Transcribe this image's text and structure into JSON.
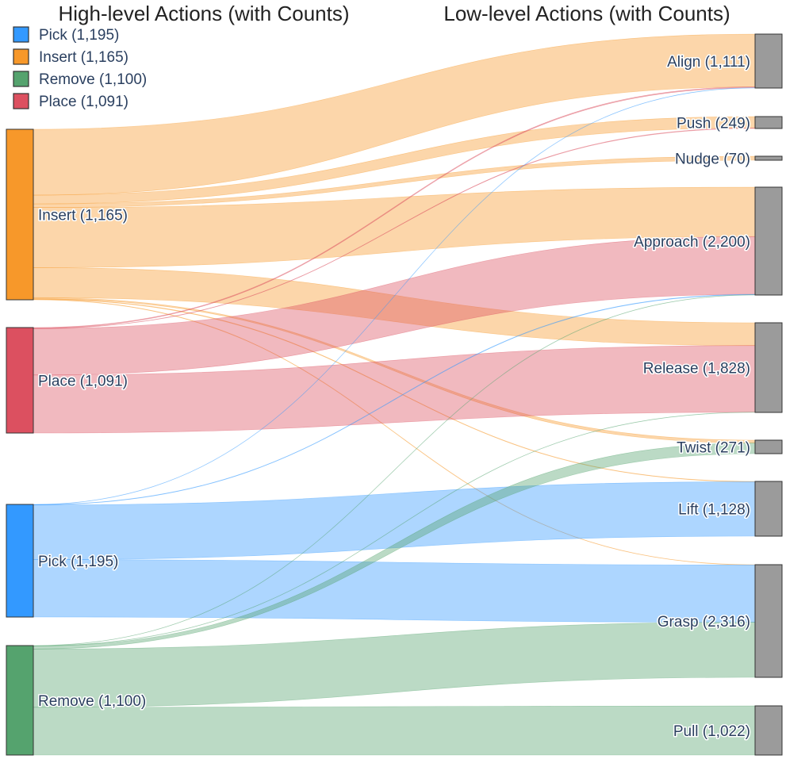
{
  "chart_data": {
    "type": "sankey",
    "titles": {
      "left": "High-level Actions (with Counts)",
      "right": "Low-level Actions (with Counts)"
    },
    "legend": [
      {
        "key": "pick",
        "label": "Pick (1,195)",
        "color": "#3399ff"
      },
      {
        "key": "insert",
        "label": "Insert (1,165)",
        "color": "#f7982a"
      },
      {
        "key": "remove",
        "label": "Remove (1,100)",
        "color": "#55a36e"
      },
      {
        "key": "place",
        "label": "Place (1,091)",
        "color": "#dc5060"
      }
    ],
    "sources": [
      {
        "key": "insert",
        "label": "Insert (1,165)",
        "value": 1165,
        "color": "#f7982a"
      },
      {
        "key": "place",
        "label": "Place (1,091)",
        "value": 1091,
        "color": "#dc5060"
      },
      {
        "key": "pick",
        "label": "Pick (1,195)",
        "value": 1195,
        "color": "#3399ff"
      },
      {
        "key": "remove",
        "label": "Remove (1,100)",
        "value": 1100,
        "color": "#55a36e"
      }
    ],
    "targets": [
      {
        "key": "align",
        "label": "Align (1,111)",
        "value": 1111
      },
      {
        "key": "push",
        "label": "Push (249)",
        "value": 249
      },
      {
        "key": "nudge",
        "label": "Nudge (70)",
        "value": 70
      },
      {
        "key": "approach",
        "label": "Approach (2,200)",
        "value": 2200
      },
      {
        "key": "release",
        "label": "Release (1,828)",
        "value": 1828
      },
      {
        "key": "twist",
        "label": "Twist (271)",
        "value": 271
      },
      {
        "key": "lift",
        "label": "Lift (1,128)",
        "value": 1128
      },
      {
        "key": "grasp",
        "label": "Grasp (2,316)",
        "value": 2316
      },
      {
        "key": "pull",
        "label": "Pull (1,022)",
        "value": 1022
      }
    ],
    "links": [
      {
        "source": "insert",
        "target": "align",
        "value": 450
      },
      {
        "source": "insert",
        "target": "push",
        "value": 60
      },
      {
        "source": "insert",
        "target": "nudge",
        "value": 25
      },
      {
        "source": "insert",
        "target": "approach",
        "value": 410
      },
      {
        "source": "insert",
        "target": "release",
        "value": 205
      },
      {
        "source": "insert",
        "target": "twist",
        "value": 8
      },
      {
        "source": "insert",
        "target": "lift",
        "value": 4
      },
      {
        "source": "insert",
        "target": "grasp",
        "value": 3
      },
      {
        "source": "place",
        "target": "align",
        "value": 8
      },
      {
        "source": "place",
        "target": "push",
        "value": 3
      },
      {
        "source": "place",
        "target": "approach",
        "value": 480
      },
      {
        "source": "place",
        "target": "release",
        "value": 600
      },
      {
        "source": "pick",
        "target": "align",
        "value": 2
      },
      {
        "source": "pick",
        "target": "approach",
        "value": 4
      },
      {
        "source": "pick",
        "target": "lift",
        "value": 580
      },
      {
        "source": "pick",
        "target": "grasp",
        "value": 609
      },
      {
        "source": "remove",
        "target": "approach",
        "value": 2
      },
      {
        "source": "remove",
        "target": "release",
        "value": 2
      },
      {
        "source": "remove",
        "target": "twist",
        "value": 30
      },
      {
        "source": "remove",
        "target": "grasp",
        "value": 586
      },
      {
        "source": "remove",
        "target": "pull",
        "value": 480
      }
    ]
  }
}
